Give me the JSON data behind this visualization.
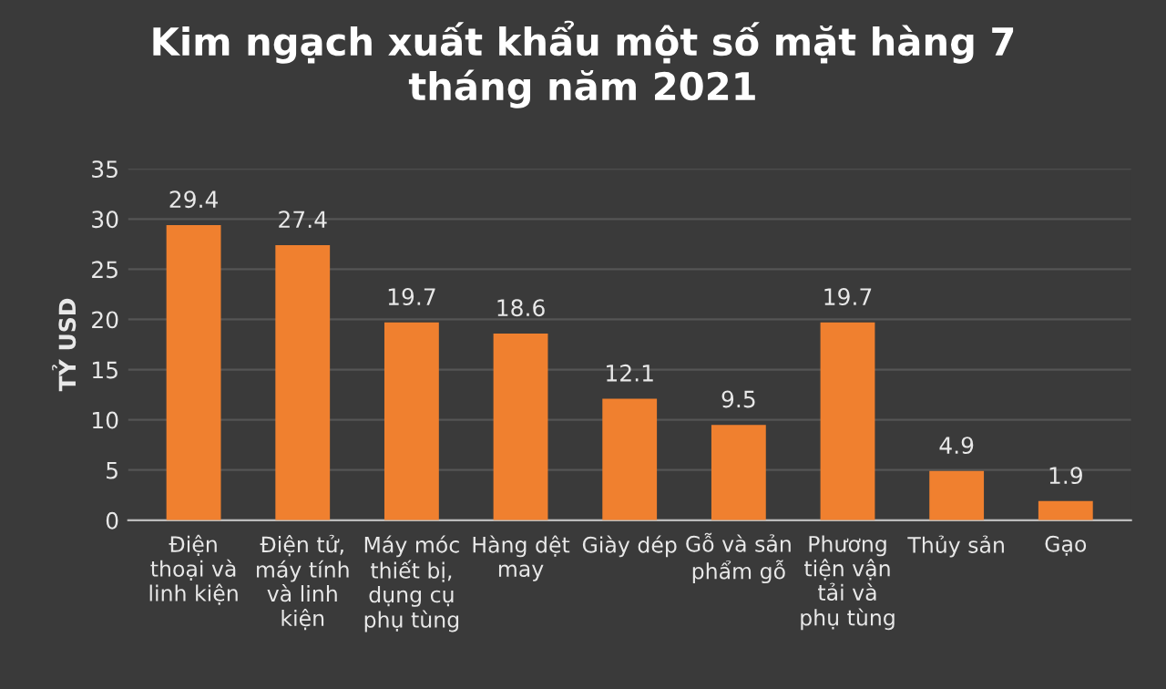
{
  "chart_data": {
    "type": "bar",
    "title": "Kim ngạch xuất khẩu một số mặt hàng 7\ntháng năm 2021",
    "ylabel": "TỶ USD",
    "categories": [
      "Điện\nthoại và\nlinh kiện",
      "Điện tử,\nmáy tính\nvà linh\nkiện",
      "Máy móc\nthiết bị,\ndụng cụ\nphụ tùng",
      "Hàng dệt\nmay",
      "Giày dép",
      "Gỗ và sản\nphẩm gỗ",
      "Phương\ntiện vận\ntải và\nphụ tùng",
      "Thủy sản",
      "Gạo"
    ],
    "values": [
      29.4,
      27.4,
      19.7,
      18.6,
      12.1,
      9.5,
      19.7,
      4.9,
      1.9
    ],
    "color": "#f0802f",
    "ylim": [
      0,
      35
    ],
    "yticks": [
      0,
      5,
      10,
      15,
      20,
      25,
      30,
      35
    ],
    "grid": "y",
    "data_labels": true
  }
}
